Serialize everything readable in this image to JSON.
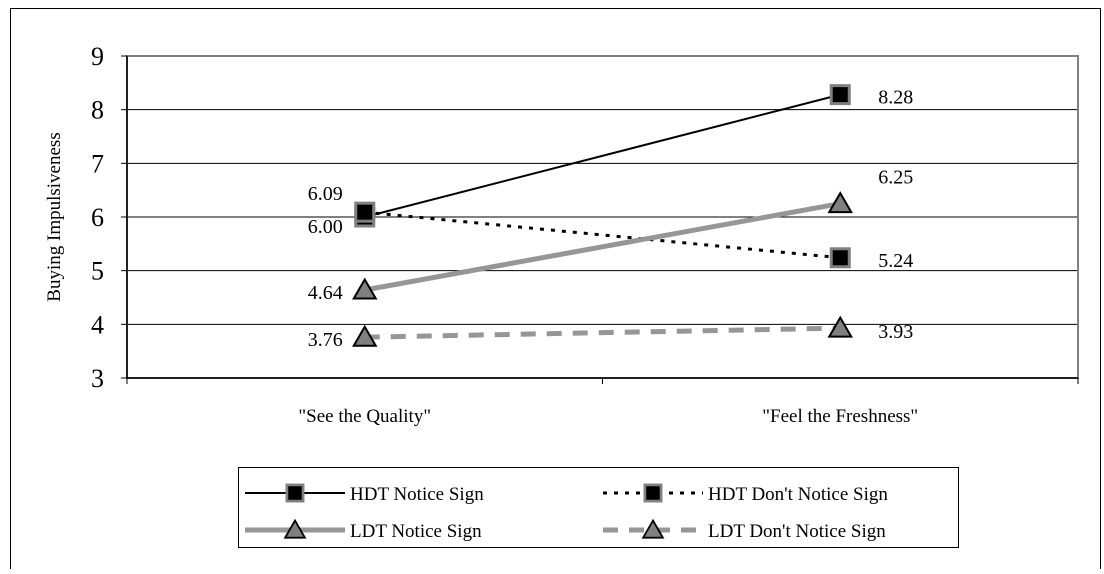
{
  "chart_data": {
    "type": "line",
    "title": "",
    "xlabel": "",
    "ylabel": "Buying Impulsiveness",
    "ylim": [
      3,
      9
    ],
    "yticks": [
      3,
      4,
      5,
      6,
      7,
      8,
      9
    ],
    "grid": "horizontal",
    "categories": [
      "\"See the Quality\"",
      "\"Feel the Freshness\""
    ],
    "series": [
      {
        "name": "HDT Notice Sign",
        "values": [
          6.0,
          8.28
        ],
        "labels": [
          "6.00",
          "8.28"
        ],
        "line_color": "#000000",
        "line_style": "solid",
        "marker": "square",
        "marker_fill": "#000000"
      },
      {
        "name": "HDT Don't Notice Sign",
        "values": [
          6.09,
          5.24
        ],
        "labels": [
          "6.09",
          "5.24"
        ],
        "line_color": "#000000",
        "line_style": "dotted",
        "marker": "square",
        "marker_fill": "#000000"
      },
      {
        "name": "LDT Notice Sign",
        "values": [
          4.64,
          6.25
        ],
        "labels": [
          "4.64",
          "6.25"
        ],
        "line_color": "#969696",
        "line_style": "solid",
        "marker": "triangle",
        "marker_fill": "#808080"
      },
      {
        "name": "LDT Don't Notice Sign",
        "values": [
          3.76,
          3.93
        ],
        "labels": [
          "3.76",
          "3.93"
        ],
        "line_color": "#969696",
        "line_style": "dashed",
        "marker": "triangle",
        "marker_fill": "#808080"
      }
    ],
    "legend_position": "bottom",
    "colors": {
      "black": "#000000",
      "gray_line": "#969696",
      "marker_border": "#808080",
      "plot_border": "#808080"
    }
  }
}
